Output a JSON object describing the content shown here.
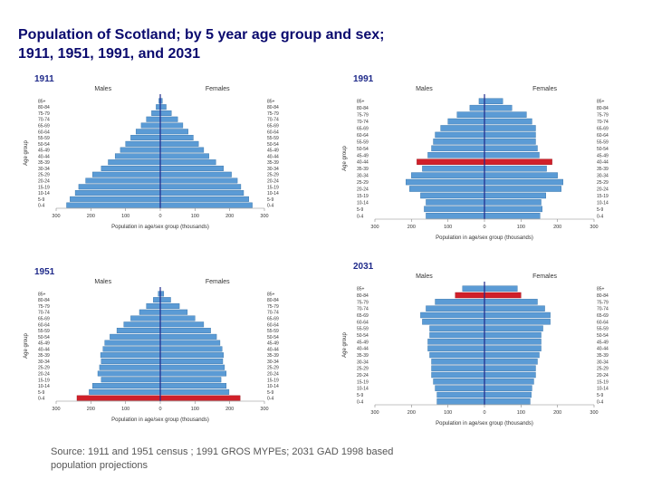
{
  "title": {
    "line1": "Population of Scotland; by 5 year age group and sex;",
    "line2": "1911, 1951, 1991, and 2031"
  },
  "source": {
    "line1": "Source: 1911 and 1951 census ; 1991 GROS MYPEs; 2031 GAD 1998 based",
    "line2": "population projections"
  },
  "colors": {
    "bar": "#5b9bd5",
    "bar_edge": "#2e6da4",
    "highlight": "#d0202a",
    "center_line": "#1f2a8a",
    "year_label": "#1f2a8a"
  },
  "chart_data": [
    {
      "type": "bar",
      "year": "1911",
      "male_label": "Males",
      "female_label": "Females",
      "ylabel": "Age group",
      "xlabel": "Population in age/sex group (thousands)",
      "categories": [
        "0-4",
        "5-9",
        "10-14",
        "15-19",
        "20-24",
        "25-29",
        "30-34",
        "35-39",
        "40-44",
        "45-49",
        "50-54",
        "55-59",
        "60-64",
        "65-69",
        "70-74",
        "75-79",
        "80-84",
        "85+"
      ],
      "xticks": [
        "300",
        "200",
        "100",
        "0",
        "100",
        "200",
        "300"
      ],
      "xlim": [
        -300,
        300
      ],
      "series": [
        {
          "name": "Males",
          "values": [
            270,
            260,
            245,
            235,
            215,
            195,
            170,
            150,
            130,
            115,
            100,
            85,
            70,
            55,
            40,
            25,
            12,
            4
          ]
        },
        {
          "name": "Females",
          "values": [
            265,
            255,
            240,
            232,
            222,
            205,
            182,
            160,
            140,
            125,
            110,
            95,
            80,
            65,
            50,
            32,
            17,
            6
          ]
        }
      ],
      "highlight": []
    },
    {
      "type": "bar",
      "year": "1951",
      "male_label": "Males",
      "female_label": "Females",
      "ylabel": "Age group",
      "xlabel": "Population in age/sex group (thousands)",
      "categories": [
        "0-4",
        "5-9",
        "10-14",
        "15-19",
        "20-24",
        "25-29",
        "30-34",
        "35-39",
        "40-44",
        "45-49",
        "50-54",
        "55-59",
        "60-64",
        "65-69",
        "70-74",
        "75-79",
        "80-84",
        "85+"
      ],
      "xticks": [
        "300",
        "200",
        "100",
        "0",
        "100",
        "200",
        "300"
      ],
      "xlim": [
        -300,
        300
      ],
      "series": [
        {
          "name": "Males",
          "values": [
            240,
            205,
            195,
            170,
            180,
            175,
            170,
            172,
            165,
            160,
            145,
            125,
            105,
            85,
            60,
            40,
            20,
            6
          ]
        },
        {
          "name": "Females",
          "values": [
            230,
            198,
            190,
            175,
            190,
            185,
            180,
            182,
            178,
            172,
            162,
            145,
            125,
            100,
            78,
            55,
            30,
            10
          ]
        }
      ],
      "highlight": [
        0
      ]
    },
    {
      "type": "bar",
      "year": "1991",
      "male_label": "Males",
      "female_label": "Females",
      "ylabel": "Age group",
      "xlabel": "Population in age/sex group (thousands)",
      "categories": [
        "0-4",
        "5-9",
        "10-14",
        "15-19",
        "20-24",
        "25-29",
        "30-34",
        "35-39",
        "40-44",
        "45-49",
        "50-54",
        "55-59",
        "60-64",
        "65-69",
        "70-74",
        "75-79",
        "80-84",
        "85+"
      ],
      "xticks": [
        "300",
        "200",
        "100",
        "0",
        "100",
        "200",
        "300"
      ],
      "xlim": [
        -300,
        300
      ],
      "series": [
        {
          "name": "Males",
          "values": [
            160,
            165,
            160,
            175,
            205,
            215,
            200,
            170,
            185,
            155,
            145,
            140,
            135,
            120,
            100,
            75,
            40,
            15
          ]
        },
        {
          "name": "Females",
          "values": [
            152,
            158,
            155,
            168,
            210,
            215,
            200,
            170,
            185,
            150,
            145,
            140,
            140,
            140,
            130,
            115,
            75,
            50
          ]
        }
      ],
      "highlight": [
        8
      ]
    },
    {
      "type": "bar",
      "year": "2031",
      "male_label": "Males",
      "female_label": "Females",
      "ylabel": "Age group",
      "xlabel": "Population in age/sex group (thousands)",
      "categories": [
        "0-4",
        "5-9",
        "10-14",
        "15-19",
        "20-24",
        "25-29",
        "30-34",
        "35-39",
        "40-44",
        "45-49",
        "50-54",
        "55-59",
        "60-64",
        "65-69",
        "70-74",
        "75-79",
        "80-84",
        "85+"
      ],
      "xticks": [
        "300",
        "200",
        "100",
        "0",
        "100",
        "200",
        "300"
      ],
      "xlim": [
        -300,
        300
      ],
      "series": [
        {
          "name": "Males",
          "values": [
            130,
            130,
            135,
            140,
            145,
            145,
            145,
            150,
            155,
            155,
            150,
            150,
            170,
            175,
            160,
            135,
            80,
            60
          ]
        },
        {
          "name": "Females",
          "values": [
            125,
            128,
            130,
            135,
            140,
            140,
            145,
            150,
            155,
            155,
            155,
            160,
            180,
            180,
            165,
            145,
            100,
            90
          ]
        }
      ],
      "highlight": [
        16
      ]
    }
  ]
}
